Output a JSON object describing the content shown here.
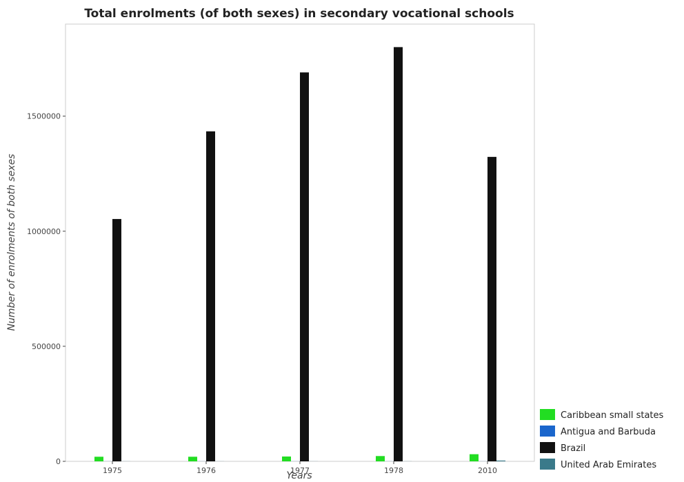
{
  "chart_data": {
    "type": "bar",
    "title": "Total enrolments (of both sexes) in secondary vocational schools",
    "xlabel": "Years",
    "ylabel": "Number of enrolments of both sexes",
    "categories": [
      "1975",
      "1976",
      "1977",
      "1978",
      "2010"
    ],
    "ylim": [
      0,
      1900000
    ],
    "yticks": [
      0,
      500000,
      1000000,
      1500000
    ],
    "ytick_labels": [
      "0",
      "500000",
      "1000000",
      "1500000"
    ],
    "legend_position": "bottom-right",
    "grid": false,
    "series": [
      {
        "name": "Caribbean small states",
        "color": "#22dd22",
        "values": [
          20000,
          20000,
          21000,
          23000,
          31000
        ]
      },
      {
        "name": "Antigua and Barbuda",
        "color": "#1a66cc",
        "values": [
          300,
          300,
          300,
          300,
          300
        ]
      },
      {
        "name": "Brazil",
        "color": "#111111",
        "values": [
          1053000,
          1434000,
          1690000,
          1800000,
          1323000
        ]
      },
      {
        "name": "United Arab Emirates",
        "color": "#3a7a8a",
        "values": [
          300,
          300,
          300,
          400,
          3500
        ]
      }
    ]
  }
}
